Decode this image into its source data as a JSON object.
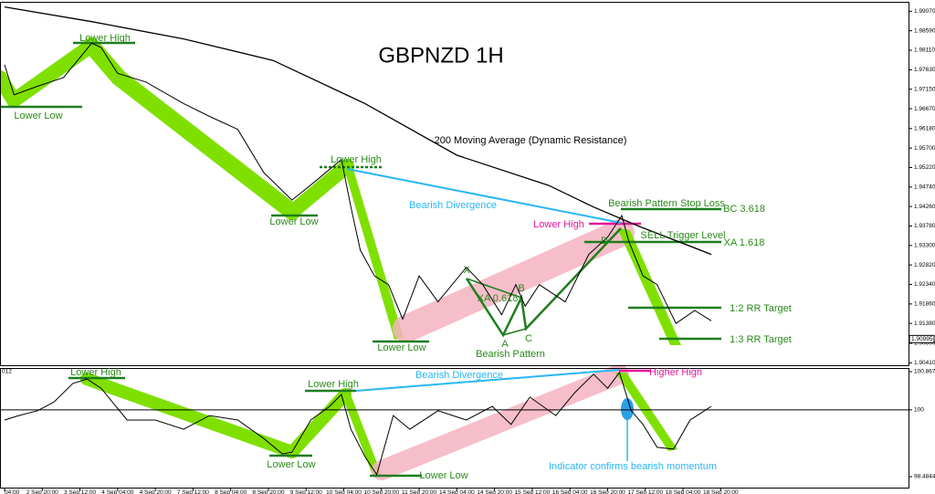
{
  "chart_data": [
    {
      "type": "line",
      "title": "GBPNZD 1H",
      "xlim": [
        -2,
        383
      ],
      "ylim": [
        1.9035,
        1.9928
      ],
      "yticks": [
        {
          "value": 1.9907,
          "label": "1.99070"
        },
        {
          "value": 1.9859,
          "label": "1.98590"
        },
        {
          "value": 1.9811,
          "label": "1.98110"
        },
        {
          "value": 1.9763,
          "label": "1.97630"
        },
        {
          "value": 1.9715,
          "label": "1.97150"
        },
        {
          "value": 1.9667,
          "label": "1.96670"
        },
        {
          "value": 1.9618,
          "label": "1.96180"
        },
        {
          "value": 1.957,
          "label": "1.95700"
        },
        {
          "value": 1.9522,
          "label": "1.95220"
        },
        {
          "value": 1.9474,
          "label": "1.94740"
        },
        {
          "value": 1.9426,
          "label": "1.94260"
        },
        {
          "value": 1.9378,
          "label": "1.93780"
        },
        {
          "value": 1.933,
          "label": "1.93300"
        },
        {
          "value": 1.9282,
          "label": "1.92820"
        },
        {
          "value": 1.9234,
          "label": "1.92340"
        },
        {
          "value": 1.9186,
          "label": "1.91860"
        },
        {
          "value": 1.9138,
          "label": "1.91380"
        },
        {
          "value": 1.9089,
          "label": "1.90890"
        },
        {
          "value": 1.9041,
          "label": "1.90410"
        }
      ],
      "price_label": {
        "value": 1.90995,
        "label": "1.90995"
      },
      "series": [
        {
          "color": "#000000",
          "x": [
            0,
            4,
            14,
            25,
            37,
            41,
            48,
            60,
            76,
            87,
            99,
            110,
            122,
            132,
            143,
            147,
            151,
            157,
            163,
            169,
            176,
            184,
            196,
            203,
            211,
            217,
            221,
            227,
            238,
            248,
            256,
            262,
            265,
            271,
            277,
            285,
            293,
            300
          ],
          "values": [
            1.97753,
            1.9701,
            1.97222,
            1.97435,
            1.98284,
            1.98178,
            1.97541,
            1.97328,
            1.96797,
            1.96479,
            1.9616,
            1.95098,
            1.94418,
            1.94886,
            1.95417,
            1.94249,
            1.93187,
            1.92549,
            1.92337,
            1.91487,
            1.92549,
            1.91912,
            1.92762,
            1.92337,
            1.91594,
            1.92337,
            1.91806,
            1.92337,
            1.91912,
            1.9308,
            1.93505,
            1.94036,
            1.93399,
            1.92549,
            1.92337,
            1.91381,
            1.917,
            1.91445
          ]
        },
        {
          "color": "#000000",
          "x": [
            0,
            37,
            76,
            114,
            153,
            192,
            231,
            250,
            269,
            300
          ],
          "values": [
            1.99176,
            1.98815,
            1.9839,
            1.97859,
            1.96797,
            1.95523,
            1.9478,
            1.94249,
            1.93781,
            1.9308
          ]
        }
      ],
      "annotations": [
        "Lower High",
        "Lower Low",
        "Lower High",
        "Lower Low",
        "Lower Low",
        "Bearish Divergence",
        "200 Moving Average (Dynamic Resistance)",
        "Bearish Pattern Stop Loss",
        "BC 3.618",
        "Lower High",
        "D",
        "SELL Trigger Level",
        "XA 1.618",
        "X",
        "B",
        "XA 0.618",
        "A",
        "C",
        "Bearish Pattern",
        "1:2 RR Target",
        "1:3 RR Target"
      ]
    },
    {
      "type": "line",
      "subtitle": "012",
      "xlim": [
        -2,
        383
      ],
      "ylim": [
        98.215,
        100.93
      ],
      "xticks": [
        {
          "value": 0,
          "label": "04:00"
        },
        {
          "value": 16,
          "label": "2 Sep 20:00"
        },
        {
          "value": 32,
          "label": "3 Sep 12:00"
        },
        {
          "value": 48,
          "label": "4 Sep 04:00"
        },
        {
          "value": 64,
          "label": "4 Sep 20:00"
        },
        {
          "value": 80,
          "label": "7 Sep 12:00"
        },
        {
          "value": 96,
          "label": "8 Sep 04:00"
        },
        {
          "value": 112,
          "label": "8 Sep 20:00"
        },
        {
          "value": 128,
          "label": "9 Sep 12:00"
        },
        {
          "value": 144,
          "label": "10 Sep 04:00"
        },
        {
          "value": 160,
          "label": "10 Sep 20:00"
        },
        {
          "value": 176,
          "label": "11 Sep 20:00"
        },
        {
          "value": 192,
          "label": "14 Sep 04:00"
        },
        {
          "value": 208,
          "label": "14 Sep 20:00"
        },
        {
          "value": 224,
          "label": "15 Sep 12:00"
        },
        {
          "value": 240,
          "label": "16 Sep 04:00"
        },
        {
          "value": 256,
          "label": "16 Sep 20:00"
        },
        {
          "value": 272,
          "label": "17 Sep 12:00"
        },
        {
          "value": 288,
          "label": "18 Sep 04:00"
        },
        {
          "value": 304,
          "label": "18 Sep 20:00"
        }
      ],
      "yticks": [
        {
          "value": 100.8675,
          "label": "100.8675"
        },
        100,
        {
          "value": 98.4844,
          "label": "98.4844"
        }
      ],
      "level": 100,
      "series": [
        {
          "color": "#000000",
          "x": [
            0,
            6,
            14,
            21,
            29,
            35,
            41,
            52,
            64,
            76,
            87,
            99,
            110,
            118,
            122,
            130,
            138,
            143,
            147,
            153,
            158,
            165,
            172,
            184,
            196,
            207,
            215,
            223,
            234,
            242,
            250,
            256,
            261,
            266,
            271,
            277,
            284,
            291,
            300
          ],
          "values": [
            99.77,
            99.87,
            99.98,
            100.18,
            100.6,
            100.7,
            100.49,
            99.77,
            99.77,
            99.56,
            99.87,
            99.77,
            99.35,
            99.0,
            99.04,
            99.77,
            100.08,
            100.35,
            99.56,
            98.94,
            98.53,
            99.87,
            99.56,
            99.98,
            99.77,
            100.08,
            99.67,
            100.29,
            99.87,
            100.39,
            100.81,
            100.49,
            100.85,
            99.98,
            99.67,
            99.15,
            99.11,
            99.77,
            100.08
          ]
        }
      ],
      "annotations": [
        "Lower High",
        "Lower High",
        "Lower Low",
        "Lower Low",
        "Bearish Divergence",
        "Higher High",
        "Indicator confirms bearish momentum"
      ]
    }
  ]
}
